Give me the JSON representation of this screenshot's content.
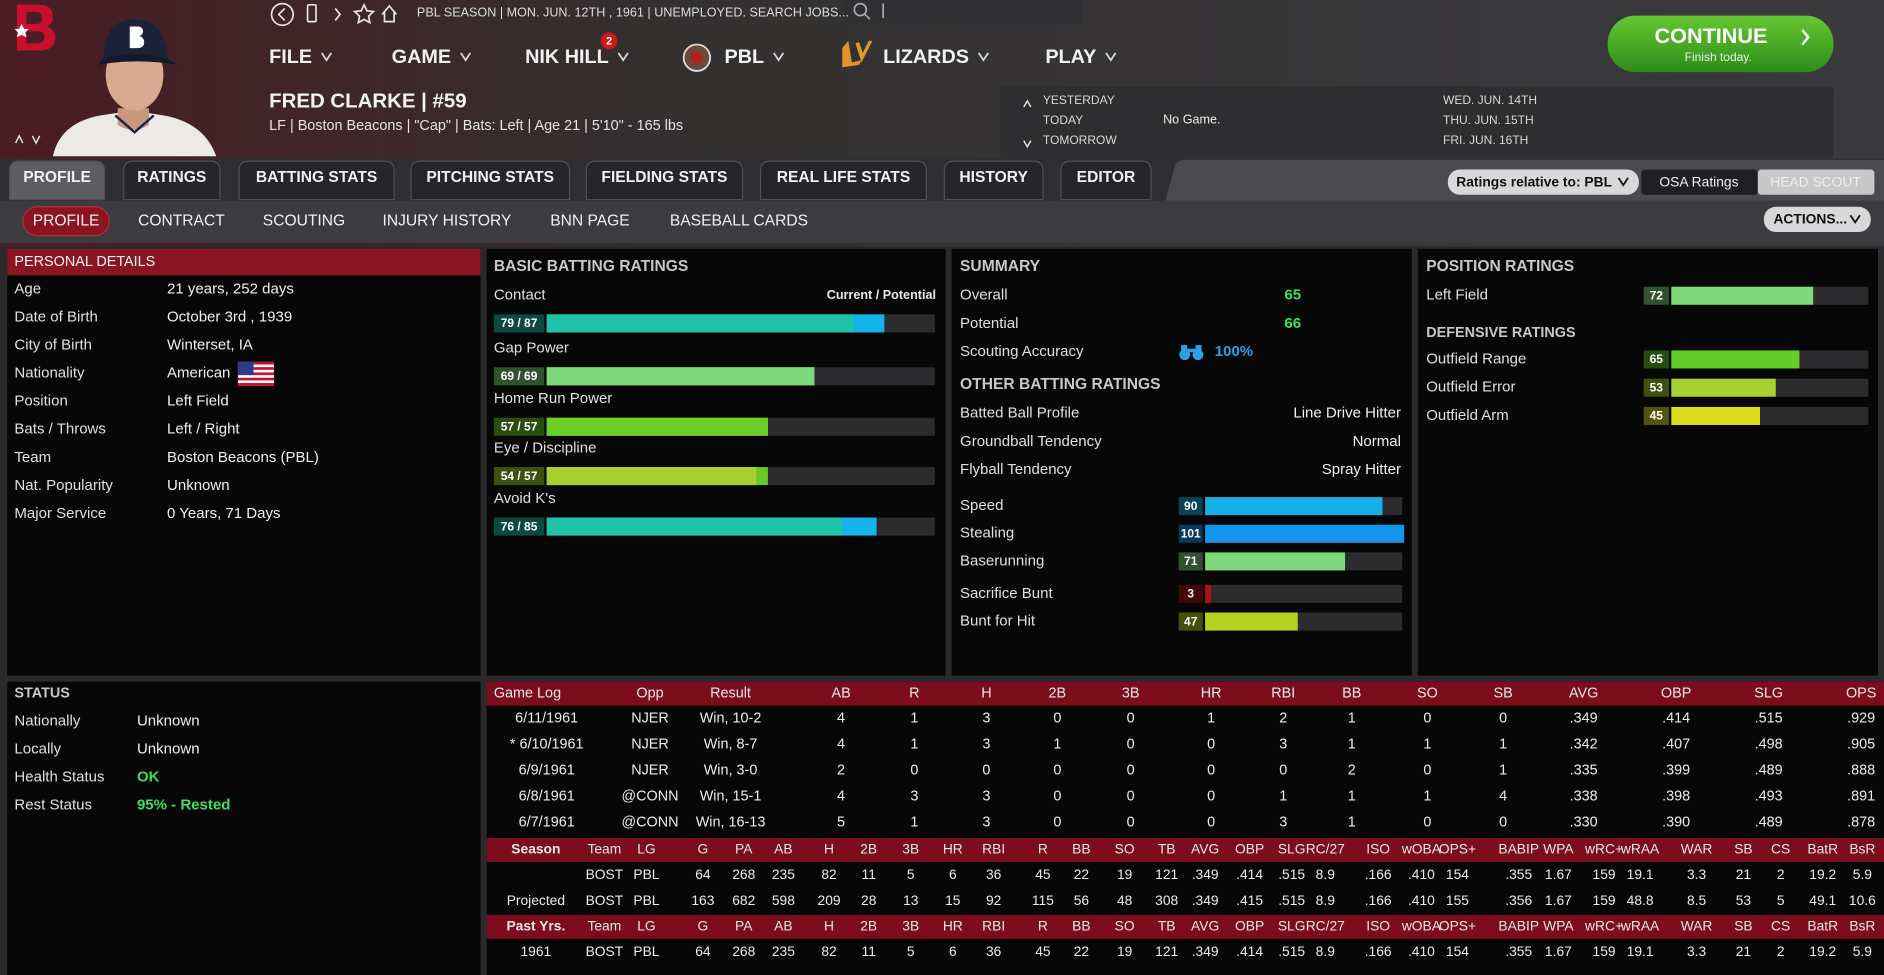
{
  "header": {
    "status_line": "PBL SEASON  |  MON. JUN. 12TH , 1961  |  UNEMPLOYED. SEARCH JOBS...",
    "menu": [
      "FILE",
      "GAME",
      "NIK HILL",
      "PBL",
      "LIZARDS",
      "PLAY"
    ],
    "notifications": 2,
    "continue": {
      "label": "CONTINUE",
      "sub": "Finish today."
    }
  },
  "player": {
    "name": "FRED CLARKE  |  #59",
    "info": "LF | Boston Beacons | \"Cap\" | Bats: Left | Age 21 | 5'10\" - 165 lbs"
  },
  "schedule": {
    "days": [
      "YESTERDAY",
      "TODAY",
      "TOMORROW"
    ],
    "today": "No Game.",
    "dates": [
      "WED. JUN. 14TH",
      "THU. JUN. 15TH",
      "FRI. JUN. 16TH"
    ]
  },
  "tabs": [
    "PROFILE",
    "RATINGS",
    "BATTING STATS",
    "PITCHING STATS",
    "FIELDING STATS",
    "REAL LIFE STATS",
    "HISTORY",
    "EDITOR"
  ],
  "subtabs": [
    "PROFILE",
    "CONTRACT",
    "SCOUTING",
    "INJURY HISTORY",
    "BNN PAGE",
    "BASEBALL CARDS"
  ],
  "controls": {
    "ratings_relative": "Ratings relative to: PBL",
    "osa": "OSA Ratings",
    "head_scout": "HEAD SCOUT",
    "actions": "ACTIONS..."
  },
  "personal_details": {
    "title": "PERSONAL DETAILS",
    "rows": [
      {
        "label": "Age",
        "value": "21 years, 252 days"
      },
      {
        "label": "Date of Birth",
        "value": "October 3rd , 1939"
      },
      {
        "label": "City of Birth",
        "value": "Winterset, IA"
      },
      {
        "label": "Nationality",
        "value": "American"
      },
      {
        "label": "Position",
        "value": "Left Field"
      },
      {
        "label": "Bats / Throws",
        "value": "Left / Right"
      },
      {
        "label": "Team",
        "value": "Boston Beacons (PBL)"
      },
      {
        "label": "Nat. Popularity",
        "value": "Unknown"
      },
      {
        "label": "Major Service",
        "value": "0 Years, 71 Days"
      }
    ]
  },
  "status": {
    "title": "STATUS",
    "rows": [
      {
        "label": "Nationally",
        "value": "Unknown"
      },
      {
        "label": "Locally",
        "value": "Unknown"
      },
      {
        "label": "Health Status",
        "value": "OK",
        "color": "#3ee05a"
      },
      {
        "label": "Rest Status",
        "value": "95% - Rested",
        "color": "#3ee05a"
      }
    ]
  },
  "batting_ratings": {
    "title": "BASIC BATTING RATINGS",
    "scale_note": "Current / Potential",
    "items": [
      {
        "name": "Contact",
        "label": "79 / 87",
        "current": 79,
        "potential": 87,
        "color": "#1fc4a8",
        "potential_color": "#14b4ea"
      },
      {
        "name": "Gap Power",
        "label": "69 / 69",
        "current": 69,
        "potential": 69,
        "color": "#7dd87a",
        "potential_color": "#7dd87a"
      },
      {
        "name": "Home Run Power",
        "label": "57 / 57",
        "current": 57,
        "potential": 57,
        "color": "#6bcf28",
        "potential_color": "#6bcf28"
      },
      {
        "name": "Eye / Discipline",
        "label": "54 / 57",
        "current": 54,
        "potential": 57,
        "color": "#a8d030",
        "potential_color": "#68c828"
      },
      {
        "name": "Avoid K's",
        "label": "76 / 85",
        "current": 76,
        "potential": 85,
        "color": "#1fc4a8",
        "potential_color": "#14b4ea"
      }
    ]
  },
  "summary": {
    "title": "SUMMARY",
    "items": [
      {
        "name": "Overall",
        "value": 65
      },
      {
        "name": "Potential",
        "value": 66
      },
      {
        "name": "Scouting Accuracy",
        "value": 100,
        "value_label": "100%"
      }
    ],
    "other_title": "OTHER BATTING RATINGS",
    "profile": [
      {
        "label": "Batted Ball Profile",
        "value": "Line Drive Hitter"
      },
      {
        "label": "Groundball Tendency",
        "value": "Normal"
      },
      {
        "label": "Flyball Tendency",
        "value": "Spray Hitter"
      }
    ],
    "bars": [
      {
        "name": "Speed",
        "value": 90,
        "color": "#17b0e6"
      },
      {
        "name": "Stealing",
        "value": 101,
        "color": "#1596ee"
      },
      {
        "name": "Baserunning",
        "value": 71,
        "color": "#7dd87a"
      },
      {
        "name": "Sacrifice Bunt",
        "value": 3,
        "color": "#b41010"
      },
      {
        "name": "Bunt for Hit",
        "value": 47,
        "color": "#b6d21e"
      }
    ]
  },
  "position_ratings": {
    "title": "POSITION RATINGS",
    "items": [
      {
        "name": "Left Field",
        "value": 72,
        "color": "#7dd87a"
      }
    ],
    "defensive_title": "DEFENSIVE RATINGS",
    "defensive": [
      {
        "name": "Outfield Range",
        "value": 65,
        "color": "#64cc28"
      },
      {
        "name": "Outfield Error",
        "value": 53,
        "color": "#a8d030"
      },
      {
        "name": "Outfield Arm",
        "value": 45,
        "color": "#dcdc1a"
      }
    ]
  },
  "game_log": {
    "headers": [
      "Game Log",
      "Opp",
      "Result",
      "AB",
      "R",
      "H",
      "2B",
      "3B",
      "HR",
      "RBI",
      "BB",
      "SO",
      "SB",
      "AVG",
      "OBP",
      "SLG",
      "OPS"
    ],
    "rows": [
      [
        "6/11/1961",
        "NJER",
        "Win, 10-2",
        "4",
        "1",
        "3",
        "0",
        "0",
        "1",
        "2",
        "1",
        "0",
        "0",
        ".349",
        ".414",
        ".515",
        ".929"
      ],
      [
        "* 6/10/1961",
        "NJER",
        "Win, 8-7",
        "4",
        "1",
        "3",
        "1",
        "0",
        "0",
        "3",
        "1",
        "1",
        "1",
        ".342",
        ".407",
        ".498",
        ".905"
      ],
      [
        "6/9/1961",
        "NJER",
        "Win, 3-0",
        "2",
        "0",
        "0",
        "0",
        "0",
        "0",
        "0",
        "2",
        "0",
        "1",
        ".335",
        ".399",
        ".489",
        ".888"
      ],
      [
        "6/8/1961",
        "@CONN",
        "Win, 15-1",
        "4",
        "3",
        "3",
        "0",
        "0",
        "0",
        "1",
        "1",
        "1",
        "4",
        ".338",
        ".398",
        ".493",
        ".891"
      ],
      [
        "6/7/1961",
        "@CONN",
        "Win, 16-13",
        "5",
        "1",
        "3",
        "0",
        "0",
        "0",
        "3",
        "1",
        "0",
        "0",
        ".330",
        ".390",
        ".489",
        ".878"
      ]
    ]
  },
  "season_stats": {
    "headers": [
      "Season",
      "Team",
      "LG",
      "G",
      "PA",
      "AB",
      "H",
      "2B",
      "3B",
      "HR",
      "RBI",
      "R",
      "BB",
      "SO",
      "TB",
      "AVG",
      "OBP",
      "SLG",
      "RC/27",
      "ISO",
      "wOBA",
      "OPS+",
      "BABIP",
      "WPA",
      "wRC+",
      "wRAA",
      "WAR",
      "SB",
      "CS",
      "BatR",
      "BsR"
    ],
    "rows": [
      [
        null,
        "BOST",
        "PBL",
        "64",
        "268",
        "235",
        "82",
        "11",
        "5",
        "6",
        "36",
        "45",
        "22",
        "19",
        "121",
        ".349",
        ".414",
        ".515",
        "8.9",
        ".166",
        ".410",
        "154",
        ".355",
        "1.67",
        "159",
        "19.1",
        "3.3",
        "21",
        "2",
        "19.2",
        "5.9"
      ],
      [
        "Projected",
        "BOST",
        "PBL",
        "163",
        "682",
        "598",
        "209",
        "28",
        "13",
        "15",
        "92",
        "115",
        "56",
        "48",
        "308",
        ".349",
        ".415",
        ".515",
        "8.9",
        ".166",
        ".410",
        "155",
        ".356",
        "1.67",
        "159",
        "48.8",
        "8.5",
        "53",
        "5",
        "49.1",
        "10.6"
      ]
    ]
  },
  "past_stats": {
    "headers": [
      "Past Yrs.",
      "Team",
      "LG",
      "G",
      "PA",
      "AB",
      "H",
      "2B",
      "3B",
      "HR",
      "RBI",
      "R",
      "BB",
      "SO",
      "TB",
      "AVG",
      "OBP",
      "SLG",
      "RC/27",
      "ISO",
      "wOBA",
      "OPS+",
      "BABIP",
      "WPA",
      "wRC+",
      "wRAA",
      "WAR",
      "SB",
      "CS",
      "BatR",
      "BsR"
    ],
    "rows": [
      [
        "1961",
        "BOST",
        "PBL",
        "64",
        "268",
        "235",
        "82",
        "11",
        "5",
        "6",
        "36",
        "45",
        "22",
        "19",
        "121",
        ".349",
        ".414",
        ".515",
        "8.9",
        ".166",
        ".410",
        "154",
        ".355",
        "1.67",
        "159",
        "19.1",
        "3.3",
        "21",
        "2",
        "19.2",
        "5.9"
      ]
    ]
  }
}
